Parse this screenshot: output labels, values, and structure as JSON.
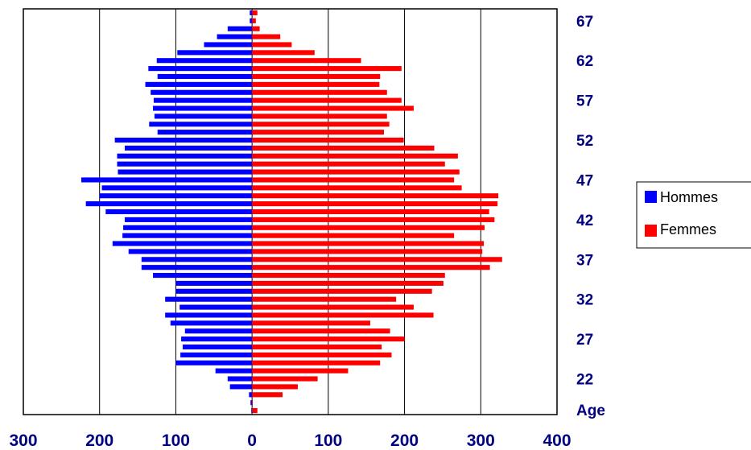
{
  "chart_data": {
    "type": "bar",
    "orientation": "horizontal",
    "layout": "population-pyramid",
    "ages": [
      18,
      19,
      20,
      21,
      22,
      23,
      24,
      25,
      26,
      27,
      28,
      29,
      30,
      31,
      32,
      33,
      34,
      35,
      36,
      37,
      38,
      39,
      40,
      41,
      42,
      43,
      44,
      45,
      46,
      47,
      48,
      49,
      50,
      51,
      52,
      53,
      54,
      55,
      56,
      57,
      58,
      59,
      60,
      61,
      62,
      63,
      64,
      65,
      66,
      67,
      68
    ],
    "series": [
      {
        "name": "Hommes",
        "color": "#0000FF",
        "side": "left",
        "values": [
          1,
          2,
          4,
          29,
          32,
          48,
          100,
          94,
          91,
          93,
          88,
          107,
          114,
          95,
          114,
          100,
          100,
          130,
          145,
          145,
          162,
          183,
          170,
          169,
          167,
          192,
          218,
          200,
          197,
          224,
          176,
          177,
          177,
          167,
          180,
          124,
          135,
          128,
          130,
          129,
          133,
          140,
          124,
          136,
          125,
          98,
          63,
          46,
          32,
          3,
          3
        ]
      },
      {
        "name": "Femmes",
        "color": "#FF0000",
        "side": "right",
        "values": [
          7,
          1,
          40,
          60,
          86,
          126,
          168,
          183,
          170,
          200,
          181,
          155,
          238,
          212,
          189,
          236,
          251,
          253,
          312,
          328,
          302,
          304,
          265,
          305,
          318,
          311,
          322,
          323,
          275,
          265,
          272,
          253,
          270,
          239,
          199,
          173,
          180,
          177,
          212,
          196,
          177,
          167,
          168,
          196,
          143,
          82,
          52,
          37,
          10,
          5,
          7
        ]
      }
    ],
    "x_ticks": [
      "300",
      "200",
      "100",
      "0",
      "100",
      "200",
      "300",
      "400"
    ],
    "x_range": [
      -300,
      400
    ],
    "y_ticks": [
      {
        "age": 22,
        "label": "22"
      },
      {
        "age": 27,
        "label": "27"
      },
      {
        "age": 32,
        "label": "32"
      },
      {
        "age": 37,
        "label": "37"
      },
      {
        "age": 42,
        "label": "42"
      },
      {
        "age": 47,
        "label": "47"
      },
      {
        "age": 52,
        "label": "52"
      },
      {
        "age": 57,
        "label": "57"
      },
      {
        "age": 62,
        "label": "62"
      },
      {
        "age": 67,
        "label": "67"
      }
    ],
    "y_axis_title": "Age",
    "grid": "vertical",
    "legend": {
      "position": "right",
      "entries": [
        {
          "label": "Hommes",
          "color": "#0000FF"
        },
        {
          "label": "Femmes",
          "color": "#FF0000"
        }
      ]
    }
  }
}
